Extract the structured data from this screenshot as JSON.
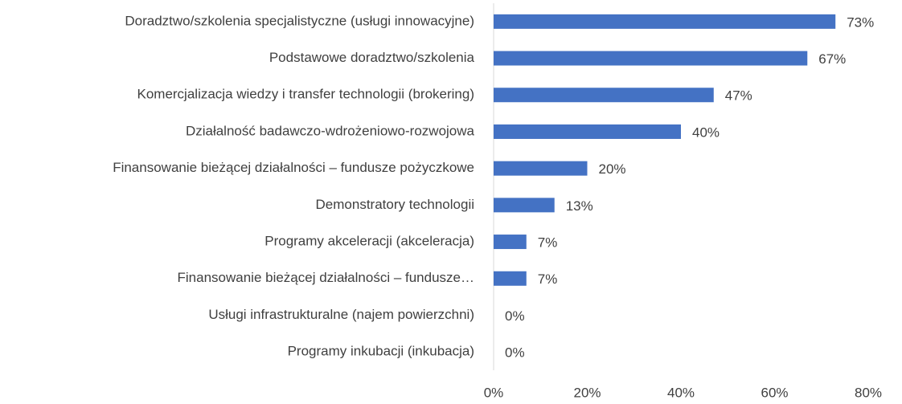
{
  "chart_data": {
    "type": "bar",
    "orientation": "horizontal",
    "categories": [
      "Doradztwo/szkolenia specjalistyczne (usługi innowacyjne)",
      "Podstawowe doradztwo/szkolenia",
      "Komercjalizacja wiedzy i transfer technologii (brokering)",
      "Działalność badawczo-wdrożeniowo-rozwojowa",
      "Finansowanie bieżącej działalności – fundusze pożyczkowe",
      "Demonstratory technologii",
      "Programy akceleracji (akceleracja)",
      "Finansowanie bieżącej działalności – fundusze…",
      "Usługi infrastrukturalne (najem powierzchni)",
      "Programy inkubacji (inkubacja)"
    ],
    "values": [
      73,
      67,
      47,
      40,
      20,
      13,
      7,
      7,
      0,
      0
    ],
    "value_labels": [
      "73%",
      "67%",
      "47%",
      "40%",
      "20%",
      "13%",
      "7%",
      "7%",
      "0%",
      "0%"
    ],
    "color": "#4472c4",
    "xlim": [
      0,
      80
    ],
    "xticks": [
      {
        "value": 0,
        "label": "0%"
      },
      {
        "value": 20,
        "label": "20%"
      },
      {
        "value": 40,
        "label": "40%"
      },
      {
        "value": 60,
        "label": "60%"
      },
      {
        "value": 80,
        "label": "80%"
      }
    ]
  }
}
